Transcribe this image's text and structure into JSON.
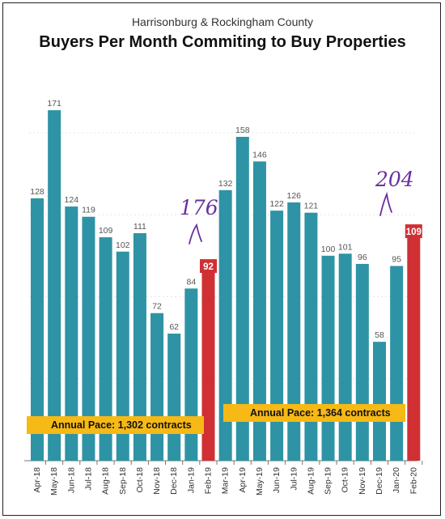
{
  "chart_data": {
    "type": "bar",
    "subtitle": "Harrisonburg & Rockingham County",
    "title": "Buyers Per Month Commiting to Buy Properties",
    "categories": [
      "Apr-18",
      "May-18",
      "Jun-18",
      "Jul-18",
      "Aug-18",
      "Sep-18",
      "Oct-18",
      "Nov-18",
      "Dec-18",
      "Jan-19",
      "Feb-19",
      "Mar-19",
      "Apr-19",
      "May-19",
      "Jun-19",
      "Jul-19",
      "Aug-19",
      "Sep-19",
      "Oct-19",
      "Nov-19",
      "Dec-19",
      "Jan-20",
      "Feb-20"
    ],
    "values": [
      128,
      171,
      124,
      119,
      109,
      102,
      111,
      72,
      62,
      84,
      92,
      132,
      158,
      146,
      122,
      126,
      121,
      100,
      101,
      96,
      58,
      95,
      109
    ],
    "highlighted_categories": [
      "Feb-19",
      "Feb-20"
    ],
    "ylim": [
      0,
      190
    ],
    "grid": true,
    "colors": {
      "bar": "#2e93a5",
      "highlight": "#d03034",
      "pace_box": "#f6b916",
      "handwriting": "#6a2fa0"
    },
    "annotations": {
      "pace_1": "Annual Pace: 1,302 contracts",
      "pace_2": "Annual Pace: 1,364 contracts",
      "handwritten_1": "176",
      "handwritten_2": "204"
    }
  }
}
